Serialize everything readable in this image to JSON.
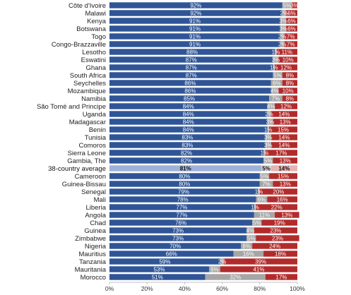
{
  "chart_data": {
    "type": "bar",
    "orientation": "horizontal",
    "stacked": true,
    "categories": [
      "Côte d'Ivoire",
      "Malawi",
      "Kenya",
      "Botswana",
      "Togo",
      "Congo-Brazzaville",
      "Lesotho",
      "Eswatini",
      "Ghana",
      "South Africa",
      "Seychelles",
      "Mozambique",
      "Namibia",
      "São Tomé and Principe",
      "Uganda",
      "Madagascar",
      "Benin",
      "Tunisia",
      "Comoros",
      "Sierra Leone",
      "Gambia, The",
      "38-country average",
      "Cameroon",
      "Guinea-Bissau",
      "Senegal",
      "Mali",
      "Liberia",
      "Angola",
      "Chad",
      "Guinea",
      "Zimbabwe",
      "Nigeria",
      "Mauritius",
      "Tanzania",
      "Mauritania",
      "Morocco"
    ],
    "highlight_category": "38-country average",
    "series": [
      {
        "values": [
          92,
          92,
          91,
          91,
          91,
          91,
          88,
          87,
          87,
          87,
          86,
          86,
          85,
          84,
          84,
          84,
          84,
          83,
          83,
          82,
          82,
          81,
          80,
          80,
          79,
          78,
          77,
          77,
          76,
          73,
          73,
          70,
          66,
          59,
          53,
          51
        ],
        "labels": [
          "92%",
          "92%",
          "91%",
          "91%",
          "91%",
          "91%",
          "88%",
          "87%",
          "87%",
          "87%",
          "86%",
          "86%",
          "85%",
          "84%",
          "84%",
          "84%",
          "84%",
          "83%",
          "83%",
          "82%",
          "82%",
          "81%",
          "80%",
          "80%",
          "79%",
          "78%",
          "77%",
          "77%",
          "76%",
          "73%",
          "73%",
          "70%",
          "66%",
          "59%",
          "53%",
          "51%"
        ]
      },
      {
        "values": [
          5,
          2,
          3,
          3,
          2,
          2,
          1,
          3,
          1,
          5,
          6,
          4,
          7,
          4,
          2,
          3,
          1,
          3,
          3,
          1,
          5,
          5,
          5,
          7,
          1,
          6,
          1,
          11,
          5,
          4,
          5,
          6,
          16,
          2,
          6,
          32
        ],
        "labels": [
          "5%",
          "2%",
          "3%",
          "3%",
          "2%",
          "2%",
          "1%",
          "3%",
          "1%",
          "5%",
          "6%",
          "4%",
          "7%",
          "4%",
          "2%",
          "3%",
          "1%",
          "3%",
          "3%",
          "1%",
          "5%",
          "5%",
          "5%",
          "7%",
          "1%",
          "6%",
          "1%",
          "11%",
          "5%",
          "4%",
          "5%",
          "6%",
          "16%",
          "2%",
          "6%",
          "32%"
        ]
      },
      {
        "values": [
          3,
          6,
          6,
          6,
          7,
          7,
          11,
          10,
          12,
          8,
          8,
          10,
          8,
          12,
          14,
          13,
          15,
          14,
          14,
          17,
          13,
          14,
          15,
          13,
          20,
          16,
          22,
          13,
          19,
          23,
          23,
          24,
          18,
          39,
          41,
          17
        ],
        "labels": [
          "3%",
          "6%",
          "6%",
          "6%",
          "7%",
          "7%",
          "11%",
          "10%",
          "12%",
          "8%",
          "8%",
          "10%",
          "8%",
          "12%",
          "14%",
          "13%",
          "15%",
          "14%",
          "14%",
          "17%",
          "13%",
          "14%",
          "15%",
          "13%",
          "20%",
          "16%",
          "22%",
          "13%",
          "19%",
          "23%",
          "23%",
          "24%",
          "18%",
          "39%",
          "41%",
          "17%"
        ]
      }
    ],
    "colors": {
      "series1": "#2f5597",
      "series2": "#a6a6a6",
      "series3": "#b22b2b",
      "average_series1": "#9fb2d6",
      "average_series2": "#d9d9d9",
      "average_series3": "#e7b3b3"
    },
    "xlim": [
      0,
      100
    ],
    "x_ticks": [
      "0%",
      "20%",
      "40%",
      "60%",
      "80%",
      "100%"
    ],
    "grid": false,
    "title": "",
    "xlabel": "",
    "ylabel": ""
  }
}
